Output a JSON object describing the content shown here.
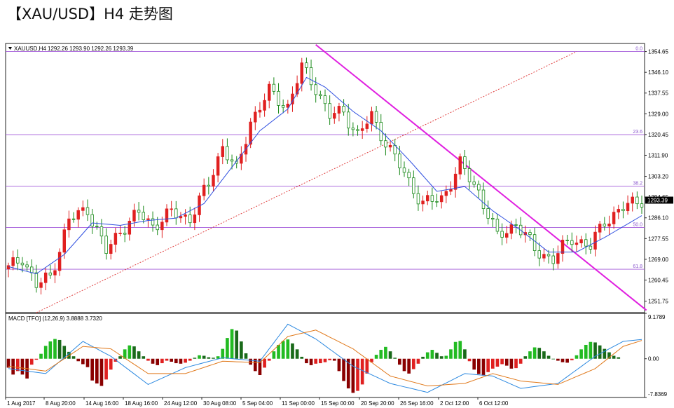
{
  "page_title": "【XAU/USD】H4 走势图",
  "chart_data": {
    "type": "candlestick",
    "symbol_header": "XAUUSD,H4  1292.26 1293.90 1292.26 1293.39",
    "last_price": "1293.39",
    "price_axis_labels": [
      "1354.65",
      "1346.10",
      "1337.55",
      "1329.00",
      "1320.45",
      "1311.90",
      "1303.20",
      "1294.65",
      "1286.10",
      "1277.55",
      "1269.00",
      "1260.45",
      "1251.75"
    ],
    "ylim": [
      1247,
      1358
    ],
    "fib_levels": [
      {
        "label": "0.0",
        "price": 1354.65
      },
      {
        "label": "23.6",
        "price": 1320.4
      },
      {
        "label": "38.2",
        "price": 1299.2
      },
      {
        "label": "50.0",
        "price": 1282.1
      },
      {
        "label": "61.8",
        "price": 1264.9
      }
    ],
    "time_labels": [
      "1 Aug 2017",
      "8 Aug 20:00",
      "14 Aug 16:00",
      "18 Aug 16:00",
      "24 Aug 12:00",
      "30 Aug 08:00",
      "5 Sep 04:00",
      "11 Sep 00:00",
      "15 Sep 00:00",
      "20 Sep 20:00",
      "26 Sep 16:00",
      "2 Oct 12:00",
      "6 Oct 12:00"
    ],
    "price_path": [
      [
        0,
        1265
      ],
      [
        3,
        1270
      ],
      [
        6,
        1258
      ],
      [
        9,
        1262
      ],
      [
        13,
        1285
      ],
      [
        17,
        1290
      ],
      [
        21,
        1272
      ],
      [
        24,
        1281
      ],
      [
        28,
        1288
      ],
      [
        31,
        1283
      ],
      [
        35,
        1288
      ],
      [
        39,
        1286
      ],
      [
        43,
        1300
      ],
      [
        46,
        1316
      ],
      [
        49,
        1305
      ],
      [
        52,
        1326
      ],
      [
        56,
        1338
      ],
      [
        60,
        1332
      ],
      [
        63,
        1348
      ],
      [
        66,
        1340
      ],
      [
        69,
        1328
      ],
      [
        72,
        1330
      ],
      [
        75,
        1320
      ],
      [
        78,
        1328
      ],
      [
        82,
        1314
      ],
      [
        86,
        1301
      ],
      [
        89,
        1292
      ],
      [
        93,
        1294
      ],
      [
        97,
        1308
      ],
      [
        101,
        1297
      ],
      [
        105,
        1278
      ],
      [
        109,
        1284
      ],
      [
        113,
        1273
      ],
      [
        117,
        1269
      ],
      [
        121,
        1278
      ],
      [
        125,
        1274
      ],
      [
        128,
        1285
      ],
      [
        132,
        1290
      ],
      [
        136,
        1294
      ]
    ],
    "ma_path": [
      [
        0,
        1266
      ],
      [
        6,
        1263
      ],
      [
        12,
        1271
      ],
      [
        18,
        1284
      ],
      [
        24,
        1283
      ],
      [
        30,
        1285
      ],
      [
        36,
        1286
      ],
      [
        42,
        1292
      ],
      [
        48,
        1307
      ],
      [
        54,
        1322
      ],
      [
        60,
        1331
      ],
      [
        64,
        1344
      ],
      [
        68,
        1340
      ],
      [
        74,
        1330
      ],
      [
        80,
        1322
      ],
      [
        86,
        1310
      ],
      [
        92,
        1297
      ],
      [
        98,
        1299
      ],
      [
        104,
        1289
      ],
      [
        110,
        1281
      ],
      [
        116,
        1272
      ],
      [
        122,
        1272
      ],
      [
        128,
        1278
      ],
      [
        136,
        1287
      ]
    ],
    "macd": {
      "label": "MACD [TFO] (12,26,9) 3.8888 3.7320",
      "axis_labels": [
        "9.1789",
        "0.00",
        "-7.8369"
      ],
      "ylim": [
        -7.8369,
        9.1789
      ],
      "histogram": [
        -1.8,
        -3.2,
        -2.5,
        -3.2,
        -4,
        -1.2,
        -0.2,
        1,
        2.6,
        3.5,
        4,
        3.8,
        2.6,
        1.4,
        0.5,
        -0.5,
        -1.1,
        -1.7,
        -4.4,
        -5,
        -5.5,
        -4.2,
        -2.2,
        -0.6,
        0.5,
        1.9,
        2.7,
        2.5,
        1.5,
        0.5,
        -0.4,
        -1,
        -1.3,
        -0.9,
        -0.4,
        -0.6,
        -0.9,
        -1,
        -0.8,
        -0.4,
        0.2,
        0.7,
        0.6,
        0.3,
        0.2,
        0.5,
        2,
        4.2,
        6,
        5.7,
        3.5,
        1.1,
        -1.2,
        -2.5,
        -3.3,
        -1.8,
        -0.4,
        1.5,
        2.8,
        3.6,
        3.9,
        3.1,
        1.9,
        0.4,
        -0.9,
        -1.3,
        -1,
        -0.9,
        -0.7,
        -0.3,
        -0.4,
        -2.5,
        -4.5,
        -6,
        -6.9,
        -6.5,
        -5.2,
        -3,
        -0.7,
        0.8,
        1.8,
        2.4,
        1.5,
        0.2,
        -1.2,
        -2.5,
        -3,
        -2.1,
        -1,
        0.4,
        1.3,
        1.8,
        1.2,
        0.5,
        0.6,
        1.9,
        3.4,
        3.6,
        1.9,
        -0.5,
        -2.2,
        -3.1,
        -3.4,
        -2.7,
        -2,
        -1.6,
        -1.1,
        -1.4,
        -2,
        -1.9,
        -1,
        0.5,
        1.5,
        2.3,
        2.2,
        1.5,
        0.6,
        0,
        -0.4,
        -0.7,
        -0.8,
        -0.3,
        0.7,
        1.9,
        2.8,
        3.4,
        3.3,
        2.7,
        2,
        1.3,
        0.6,
        0.3
      ],
      "macd_line": [
        [
          0,
          -2
        ],
        [
          8,
          -3
        ],
        [
          16,
          3.5
        ],
        [
          22,
          0.5
        ],
        [
          30,
          -5.2
        ],
        [
          38,
          -1.8
        ],
        [
          46,
          0.2
        ],
        [
          54,
          -0.5
        ],
        [
          60,
          7
        ],
        [
          66,
          4
        ],
        [
          74,
          -1.5
        ],
        [
          82,
          -5
        ],
        [
          90,
          -6.8
        ],
        [
          98,
          -3
        ],
        [
          104,
          -3.5
        ],
        [
          110,
          -6
        ],
        [
          118,
          -5
        ],
        [
          126,
          0.5
        ],
        [
          132,
          3.5
        ],
        [
          136,
          3.9
        ]
      ],
      "signal_line": [
        [
          0,
          -1.5
        ],
        [
          8,
          -2.5
        ],
        [
          16,
          2.5
        ],
        [
          22,
          2
        ],
        [
          30,
          -3
        ],
        [
          38,
          -3
        ],
        [
          46,
          -0.5
        ],
        [
          54,
          -0.8
        ],
        [
          60,
          4.5
        ],
        [
          66,
          5.8
        ],
        [
          74,
          2
        ],
        [
          82,
          -3.5
        ],
        [
          90,
          -5.5
        ],
        [
          98,
          -5
        ],
        [
          104,
          -3
        ],
        [
          110,
          -4.5
        ],
        [
          118,
          -5.2
        ],
        [
          126,
          -2
        ],
        [
          132,
          2.5
        ],
        [
          136,
          3.7
        ]
      ]
    }
  }
}
